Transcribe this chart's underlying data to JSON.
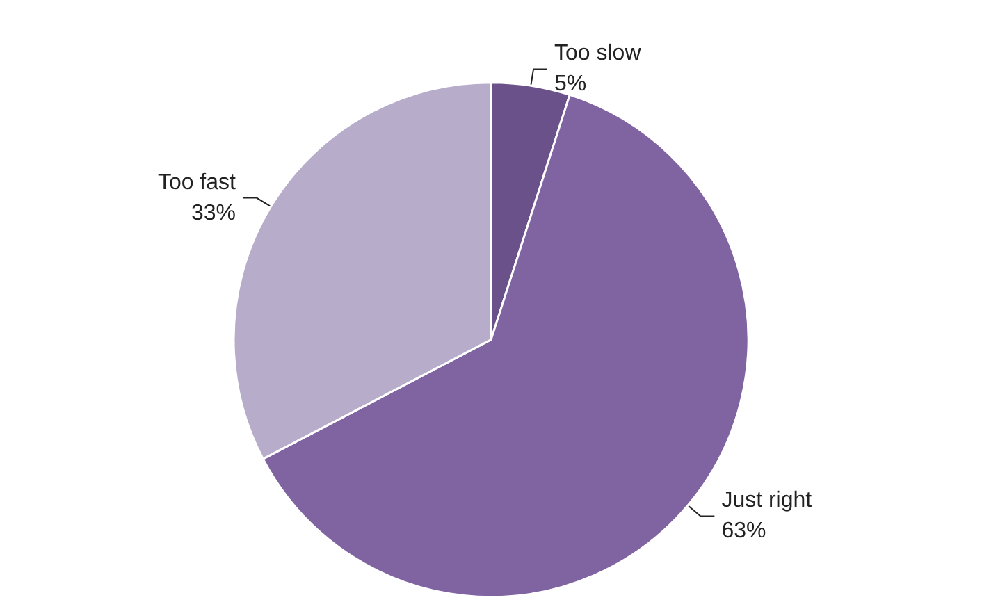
{
  "chart_data": {
    "type": "pie",
    "categories": [
      "Too slow",
      "Just right",
      "Too fast"
    ],
    "values": [
      5,
      63,
      33
    ],
    "value_labels": [
      "5%",
      "63%",
      "33%"
    ],
    "colors": [
      "#6a5189",
      "#8064a2",
      "#b8accb"
    ],
    "legend": false
  }
}
